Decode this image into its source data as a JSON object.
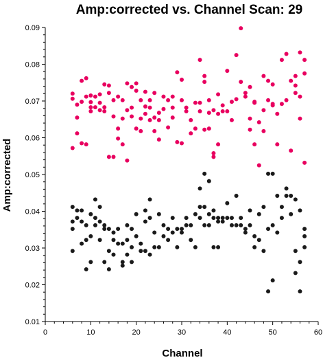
{
  "chart_data": {
    "type": "scatter",
    "title": "Amp:corrected vs. Channel Scan: 29",
    "xlabel": "Channel",
    "ylabel": "Amp:corrected",
    "xlim": [
      0,
      60
    ],
    "ylim": [
      0.01,
      0.09
    ],
    "xticks": [
      "0",
      "10",
      "20",
      "30",
      "40",
      "50",
      "60"
    ],
    "yticks": [
      "0.01",
      "0.02",
      "0.03",
      "0.04",
      "0.05",
      "0.06",
      "0.07",
      "0.08",
      "0.09"
    ],
    "grid": false,
    "series": [
      {
        "color": "#e8005f",
        "points": [
          [
            6,
            0.0572
          ],
          [
            6,
            0.0706
          ],
          [
            6,
            0.072
          ],
          [
            7,
            0.069
          ],
          [
            7,
            0.0612
          ],
          [
            7,
            0.0655
          ],
          [
            8,
            0.0755
          ],
          [
            8,
            0.0698
          ],
          [
            8,
            0.0585
          ],
          [
            9,
            0.0712
          ],
          [
            9,
            0.0582
          ],
          [
            9,
            0.0762
          ],
          [
            10,
            0.0715
          ],
          [
            10,
            0.0697
          ],
          [
            10,
            0.0683
          ],
          [
            10,
            0.0672
          ],
          [
            11,
            0.0712
          ],
          [
            11,
            0.0683
          ],
          [
            12,
            0.0718
          ],
          [
            12,
            0.0695
          ],
          [
            12,
            0.0675
          ],
          [
            13,
            0.0745
          ],
          [
            13,
            0.0683
          ],
          [
            13,
            0.0672
          ],
          [
            14,
            0.0722
          ],
          [
            14,
            0.0548
          ],
          [
            14,
            0.0742
          ],
          [
            15,
            0.0702
          ],
          [
            15,
            0.0548
          ],
          [
            15,
            0.0658
          ],
          [
            16,
            0.0625
          ],
          [
            16,
            0.0598
          ],
          [
            16,
            0.0712
          ],
          [
            17,
            0.0652
          ],
          [
            17,
            0.0582
          ],
          [
            17,
            0.0702
          ],
          [
            18,
            0.0538
          ],
          [
            18,
            0.0675
          ],
          [
            18,
            0.0748
          ],
          [
            19,
            0.0738
          ],
          [
            19,
            0.0682
          ],
          [
            19,
            0.0658
          ],
          [
            20,
            0.0748
          ],
          [
            20,
            0.0728
          ],
          [
            20,
            0.0625
          ],
          [
            21,
            0.0702
          ],
          [
            21,
            0.0618
          ],
          [
            21,
            0.0652
          ],
          [
            22,
            0.0685
          ],
          [
            22,
            0.0665
          ],
          [
            22,
            0.0725
          ],
          [
            23,
            0.0702
          ],
          [
            23,
            0.0648
          ],
          [
            23,
            0.0682
          ],
          [
            24,
            0.0655
          ],
          [
            24,
            0.0722
          ],
          [
            24,
            0.0618
          ],
          [
            25,
            0.0648
          ],
          [
            25,
            0.0595
          ],
          [
            25,
            0.0668
          ],
          [
            26,
            0.0712
          ],
          [
            26,
            0.0678
          ],
          [
            27,
            0.0628
          ],
          [
            27,
            0.0702
          ],
          [
            28,
            0.0712
          ],
          [
            28,
            0.0682
          ],
          [
            28,
            0.0655
          ],
          [
            29,
            0.0778
          ],
          [
            29,
            0.0588
          ],
          [
            30,
            0.0702
          ],
          [
            30,
            0.0758
          ],
          [
            30,
            0.0585
          ],
          [
            31,
            0.0672
          ],
          [
            31,
            0.0682
          ],
          [
            32,
            0.0612
          ],
          [
            32,
            0.0648
          ],
          [
            33,
            0.0695
          ],
          [
            33,
            0.0625
          ],
          [
            34,
            0.0812
          ],
          [
            34,
            0.0695
          ],
          [
            34,
            0.0672
          ],
          [
            35,
            0.0768
          ],
          [
            35,
            0.0622
          ],
          [
            35,
            0.0752
          ],
          [
            36,
            0.0702
          ],
          [
            36,
            0.0668
          ],
          [
            36,
            0.0625
          ],
          [
            37,
            0.0558
          ],
          [
            37,
            0.0675
          ],
          [
            37,
            0.0548
          ],
          [
            38,
            0.0582
          ],
          [
            38,
            0.0718
          ],
          [
            38,
            0.0665
          ],
          [
            39,
            0.0688
          ],
          [
            39,
            0.0672
          ],
          [
            40,
            0.0782
          ],
          [
            40,
            0.0672
          ],
          [
            41,
            0.0648
          ],
          [
            41,
            0.0698
          ],
          [
            42,
            0.0825
          ],
          [
            42,
            0.0705
          ],
          [
            43,
            0.0898
          ],
          [
            43,
            0.0752
          ],
          [
            44,
            0.0722
          ],
          [
            44,
            0.0712
          ],
          [
            45,
            0.0738
          ],
          [
            45,
            0.0652
          ],
          [
            45,
            0.0622
          ],
          [
            46,
            0.0695
          ],
          [
            46,
            0.0582
          ],
          [
            46,
            0.0698
          ],
          [
            47,
            0.0525
          ],
          [
            47,
            0.0642
          ],
          [
            48,
            0.0768
          ],
          [
            48,
            0.0675
          ],
          [
            48,
            0.0618
          ],
          [
            49,
            0.0702
          ],
          [
            49,
            0.0755
          ],
          [
            50,
            0.0692
          ],
          [
            50,
            0.0745
          ],
          [
            50,
            0.0688
          ],
          [
            51,
            0.0665
          ],
          [
            51,
            0.0582
          ],
          [
            52,
            0.0812
          ],
          [
            52,
            0.0692
          ],
          [
            53,
            0.0702
          ],
          [
            53,
            0.0828
          ],
          [
            54,
            0.0565
          ],
          [
            54,
            0.0755
          ],
          [
            55,
            0.0768
          ],
          [
            55,
            0.0742
          ],
          [
            55,
            0.0722
          ],
          [
            56,
            0.0832
          ],
          [
            56,
            0.0712
          ],
          [
            56,
            0.0652
          ],
          [
            57,
            0.0812
          ],
          [
            57,
            0.0532
          ],
          [
            57,
            0.0775
          ]
        ]
      },
      {
        "color": "#1a1a1a",
        "points": [
          [
            6,
            0.0412
          ],
          [
            6,
            0.0372
          ],
          [
            6,
            0.0352
          ],
          [
            6,
            0.0292
          ],
          [
            7,
            0.0402
          ],
          [
            7,
            0.0382
          ],
          [
            8,
            0.0402
          ],
          [
            8,
            0.0372
          ],
          [
            8,
            0.0312
          ],
          [
            9,
            0.0322
          ],
          [
            9,
            0.0242
          ],
          [
            9,
            0.0362
          ],
          [
            10,
            0.0392
          ],
          [
            10,
            0.0332
          ],
          [
            10,
            0.0262
          ],
          [
            11,
            0.0382
          ],
          [
            11,
            0.0362
          ],
          [
            11,
            0.0432
          ],
          [
            12,
            0.0412
          ],
          [
            12,
            0.0372
          ],
          [
            12,
            0.0322
          ],
          [
            13,
            0.0352
          ],
          [
            13,
            0.0262
          ],
          [
            13,
            0.0362
          ],
          [
            14,
            0.0352
          ],
          [
            14,
            0.0292
          ],
          [
            14,
            0.0242
          ],
          [
            15,
            0.0342
          ],
          [
            15,
            0.0282
          ],
          [
            15,
            0.0322
          ],
          [
            16,
            0.0352
          ],
          [
            16,
            0.0312
          ],
          [
            17,
            0.0262
          ],
          [
            17,
            0.0312
          ],
          [
            17,
            0.0252
          ],
          [
            18,
            0.0322
          ],
          [
            18,
            0.0362
          ],
          [
            18,
            0.0282
          ],
          [
            19,
            0.0352
          ],
          [
            19,
            0.0262
          ],
          [
            19,
            0.0302
          ],
          [
            20,
            0.0332
          ],
          [
            20,
            0.0392
          ],
          [
            21,
            0.0312
          ],
          [
            21,
            0.0292
          ],
          [
            22,
            0.0402
          ],
          [
            22,
            0.0292
          ],
          [
            22,
            0.0372
          ],
          [
            23,
            0.0432
          ],
          [
            23,
            0.0382
          ],
          [
            23,
            0.0282
          ],
          [
            24,
            0.0302
          ],
          [
            24,
            0.0342
          ],
          [
            25,
            0.0392
          ],
          [
            25,
            0.0302
          ],
          [
            26,
            0.0362
          ],
          [
            26,
            0.0332
          ],
          [
            27,
            0.0352
          ],
          [
            27,
            0.0322
          ],
          [
            28,
            0.0382
          ],
          [
            28,
            0.0342
          ],
          [
            29,
            0.0352
          ],
          [
            29,
            0.0302
          ],
          [
            30,
            0.0352
          ],
          [
            30,
            0.0342
          ],
          [
            31,
            0.0362
          ],
          [
            31,
            0.0382
          ],
          [
            32,
            0.0362
          ],
          [
            32,
            0.0322
          ],
          [
            33,
            0.0392
          ],
          [
            33,
            0.0302
          ],
          [
            34,
            0.0412
          ],
          [
            34,
            0.0462
          ],
          [
            34,
            0.0382
          ],
          [
            35,
            0.0502
          ],
          [
            35,
            0.0412
          ],
          [
            35,
            0.0362
          ],
          [
            36,
            0.0482
          ],
          [
            36,
            0.0392
          ],
          [
            36,
            0.0362
          ],
          [
            37,
            0.0402
          ],
          [
            37,
            0.0302
          ],
          [
            37,
            0.0382
          ],
          [
            38,
            0.0372
          ],
          [
            38,
            0.0382
          ],
          [
            38,
            0.0302
          ],
          [
            39,
            0.0382
          ],
          [
            39,
            0.0372
          ],
          [
            40,
            0.0382
          ],
          [
            40,
            0.0422
          ],
          [
            41,
            0.0382
          ],
          [
            41,
            0.0362
          ],
          [
            42,
            0.0442
          ],
          [
            42,
            0.0362
          ],
          [
            43,
            0.0382
          ],
          [
            43,
            0.0362
          ],
          [
            44,
            0.0352
          ],
          [
            44,
            0.0342
          ],
          [
            45,
            0.0402
          ],
          [
            45,
            0.0362
          ],
          [
            46,
            0.0332
          ],
          [
            46,
            0.0302
          ],
          [
            47,
            0.0392
          ],
          [
            47,
            0.0322
          ],
          [
            48,
            0.0412
          ],
          [
            48,
            0.0292
          ],
          [
            49,
            0.0502
          ],
          [
            49,
            0.0182
          ],
          [
            49,
            0.0352
          ],
          [
            50,
            0.0362
          ],
          [
            50,
            0.0502
          ],
          [
            50,
            0.0212
          ],
          [
            51,
            0.0442
          ],
          [
            51,
            0.0342
          ],
          [
            52,
            0.0412
          ],
          [
            52,
            0.0382
          ],
          [
            53,
            0.0442
          ],
          [
            53,
            0.0462
          ],
          [
            54,
            0.0442
          ],
          [
            54,
            0.0392
          ],
          [
            55,
            0.0292
          ],
          [
            55,
            0.0232
          ],
          [
            55,
            0.0432
          ],
          [
            56,
            0.0182
          ],
          [
            56,
            0.0262
          ],
          [
            56,
            0.0402
          ],
          [
            57,
            0.0352
          ],
          [
            57,
            0.0302
          ],
          [
            57,
            0.0332
          ]
        ]
      }
    ]
  }
}
